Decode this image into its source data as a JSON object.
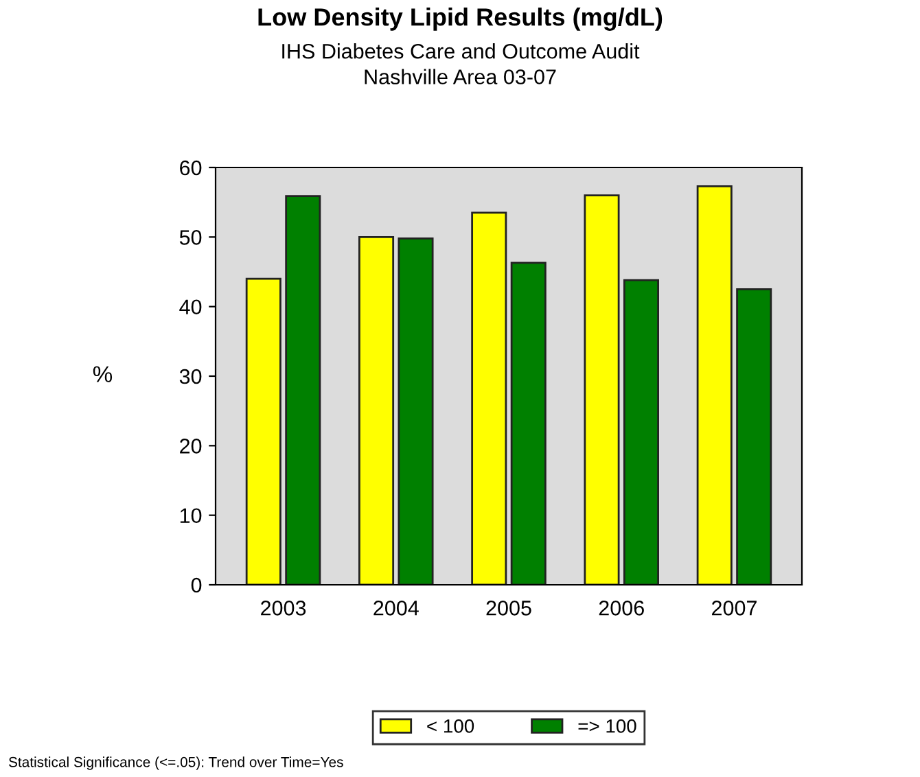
{
  "chart_data": {
    "type": "bar",
    "title": "Low Density Lipid Results (mg/dL)",
    "subtitle": "IHS Diabetes Care and Outcome Audit\nNashville Area 03-07",
    "ylabel": "%",
    "categories": [
      "2003",
      "2004",
      "2005",
      "2006",
      "2007"
    ],
    "series": [
      {
        "name": "< 100",
        "color": "#ffff00",
        "values": [
          44.0,
          50.0,
          53.5,
          56.0,
          57.3
        ]
      },
      {
        "name": "=> 100",
        "color": "#008000",
        "values": [
          55.9,
          49.8,
          46.3,
          43.8,
          42.5
        ]
      }
    ],
    "ylim": [
      0,
      60
    ],
    "yticks": [
      0,
      10,
      20,
      30,
      40,
      50,
      60
    ],
    "grid": false,
    "legend": "bottom",
    "annotations": [
      "Statistical Significance (<=.05): Trend over Time=Yes"
    ]
  }
}
